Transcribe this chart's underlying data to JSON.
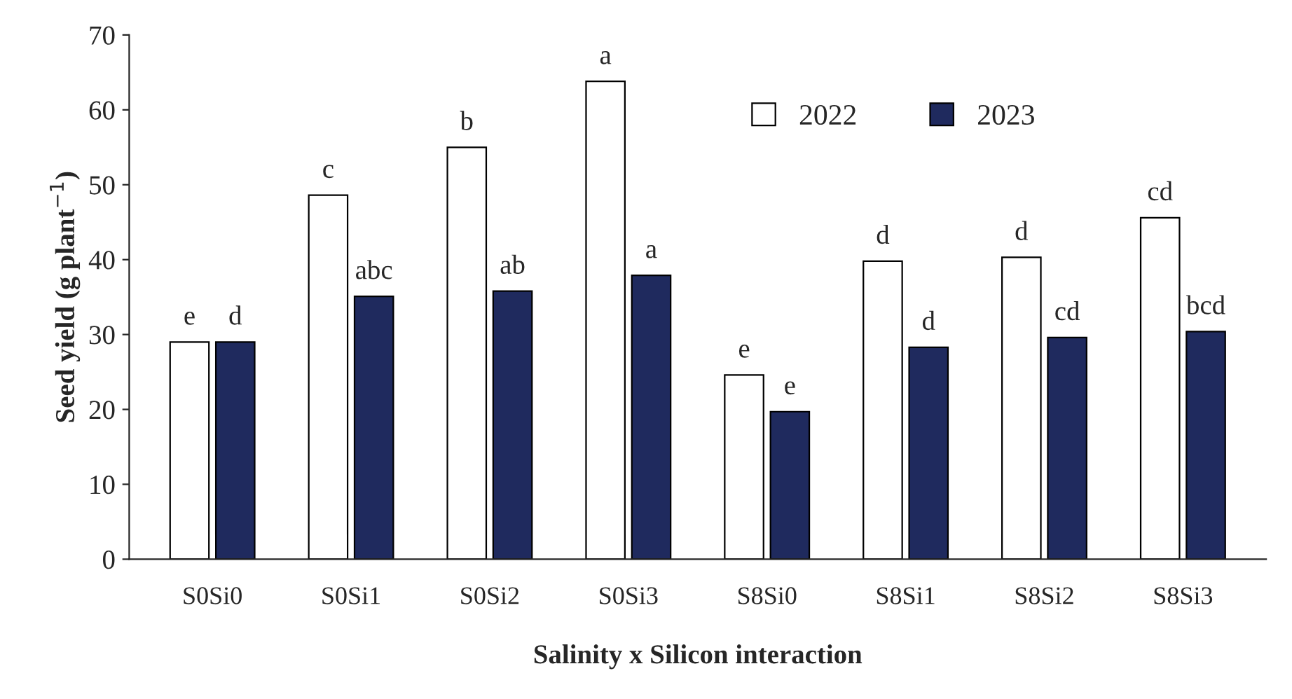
{
  "chart_data": {
    "type": "bar",
    "xlabel": "Salinity x Silicon interaction",
    "ylabel": "Seed yield (g plant$^{−1}$)",
    "categories": [
      "S0Si0",
      "S0Si1",
      "S0Si2",
      "S0Si3",
      "S8Si0",
      "S8Si1",
      "S8Si2",
      "S8Si3"
    ],
    "series": [
      {
        "name": "2022",
        "color": "#ffffff",
        "values": [
          29,
          48.6,
          55,
          63.8,
          24.6,
          39.8,
          40.3,
          45.6
        ],
        "value_labels": [
          "e",
          "c",
          "b",
          "a",
          "e",
          "d",
          "d",
          "cd"
        ]
      },
      {
        "name": "2023",
        "color": "#1f2a5e",
        "values": [
          29,
          35.1,
          35.8,
          37.9,
          19.7,
          28.3,
          29.6,
          30.4
        ],
        "value_labels": [
          "d",
          "abc",
          "ab",
          "a",
          "e",
          "d",
          "cd",
          "bcd"
        ]
      }
    ],
    "ylim": [
      0,
      70
    ],
    "yticks": [
      0,
      10,
      20,
      30,
      40,
      50,
      60,
      70
    ],
    "grid": false,
    "legend": "top right"
  }
}
